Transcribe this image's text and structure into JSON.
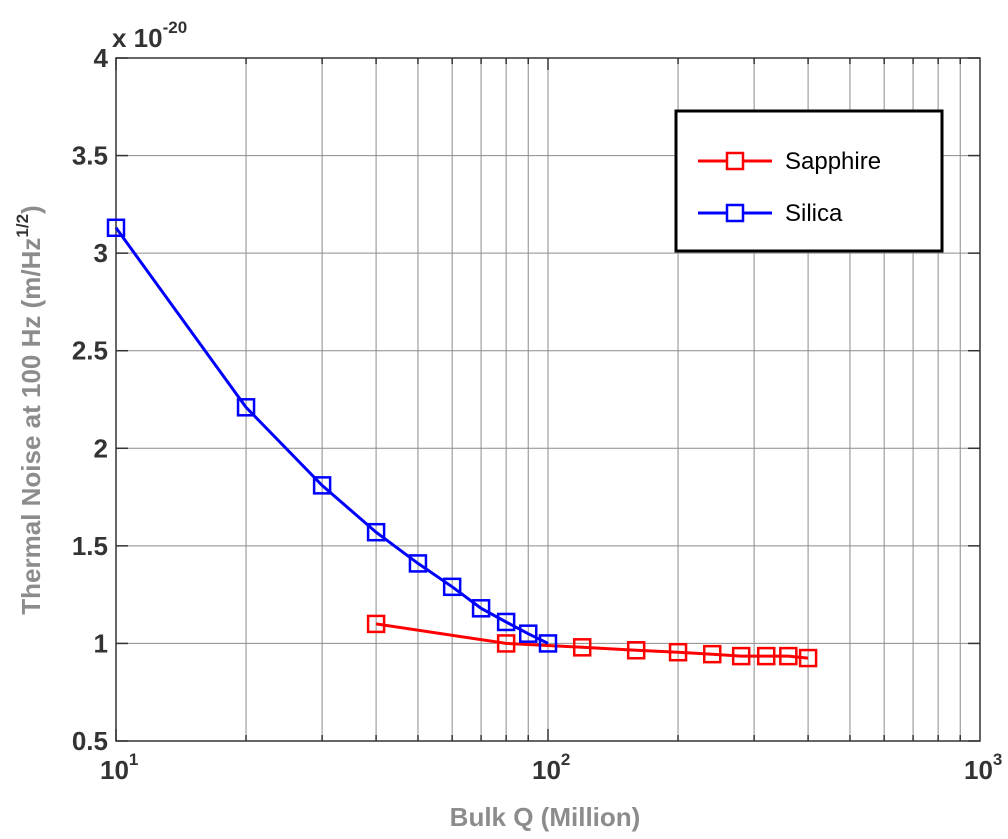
{
  "chart_data": {
    "type": "line",
    "title": "",
    "xlabel": "Bulk Q (Million)",
    "ylabel_main": "Thermal Noise at 100 Hz (m/Hz",
    "ylabel_exp": "1/2",
    "ylabel_close": ")",
    "x_scale": "log",
    "xlim": [
      10,
      1000
    ],
    "x_ticks": [
      10,
      100,
      1000
    ],
    "x_tick_labels": [
      {
        "base": "10",
        "exp": "1"
      },
      {
        "base": "10",
        "exp": "2"
      },
      {
        "base": "10",
        "exp": "3"
      }
    ],
    "ylim": [
      0.5,
      4
    ],
    "y_ticks": [
      0.5,
      1,
      1.5,
      2,
      2.5,
      3,
      3.5,
      4
    ],
    "y_tick_labels": [
      "0.5",
      "1",
      "1.5",
      "2",
      "2.5",
      "3",
      "3.5",
      "4"
    ],
    "y_multiplier": {
      "base": "x 10",
      "exp": "-20"
    },
    "grid": true,
    "legend_position": "top-right",
    "series": [
      {
        "name": "Sapphire",
        "color": "#ff0000",
        "marker": "square",
        "x": [
          40,
          80,
          120,
          160,
          200,
          240,
          280,
          320,
          360,
          400
        ],
        "y": [
          1.1,
          1.0,
          0.98,
          0.965,
          0.955,
          0.945,
          0.935,
          0.935,
          0.935,
          0.925
        ]
      },
      {
        "name": "Silica",
        "color": "#0000ff",
        "marker": "square",
        "x": [
          10,
          20,
          30,
          40,
          50,
          60,
          70,
          80,
          90,
          100
        ],
        "y": [
          3.13,
          2.21,
          1.81,
          1.57,
          1.41,
          1.29,
          1.18,
          1.11,
          1.05,
          1.0
        ]
      }
    ]
  }
}
